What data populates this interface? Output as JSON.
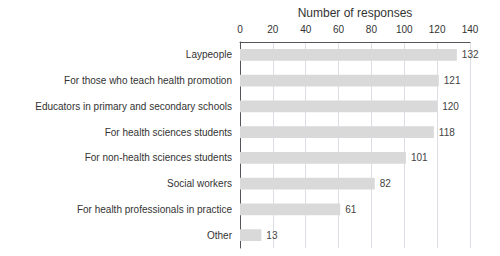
{
  "chart_data": {
    "type": "bar",
    "orientation": "horizontal",
    "xlabel": "Number of responses",
    "categories": [
      "Other",
      "For health professionals in practice",
      "Social workers",
      "For non-health sciences students",
      "For health sciences students",
      "Educators in primary and secondary schools",
      "For those who teach health promotion",
      "Laypeople"
    ],
    "values": [
      13,
      61,
      82,
      101,
      118,
      120,
      121,
      132
    ],
    "color": "#d9d9d9",
    "xlim": [
      0,
      140
    ],
    "xticks": [
      0,
      20,
      40,
      60,
      80,
      100,
      120,
      140
    ],
    "grid": true,
    "data_labels": true
  }
}
